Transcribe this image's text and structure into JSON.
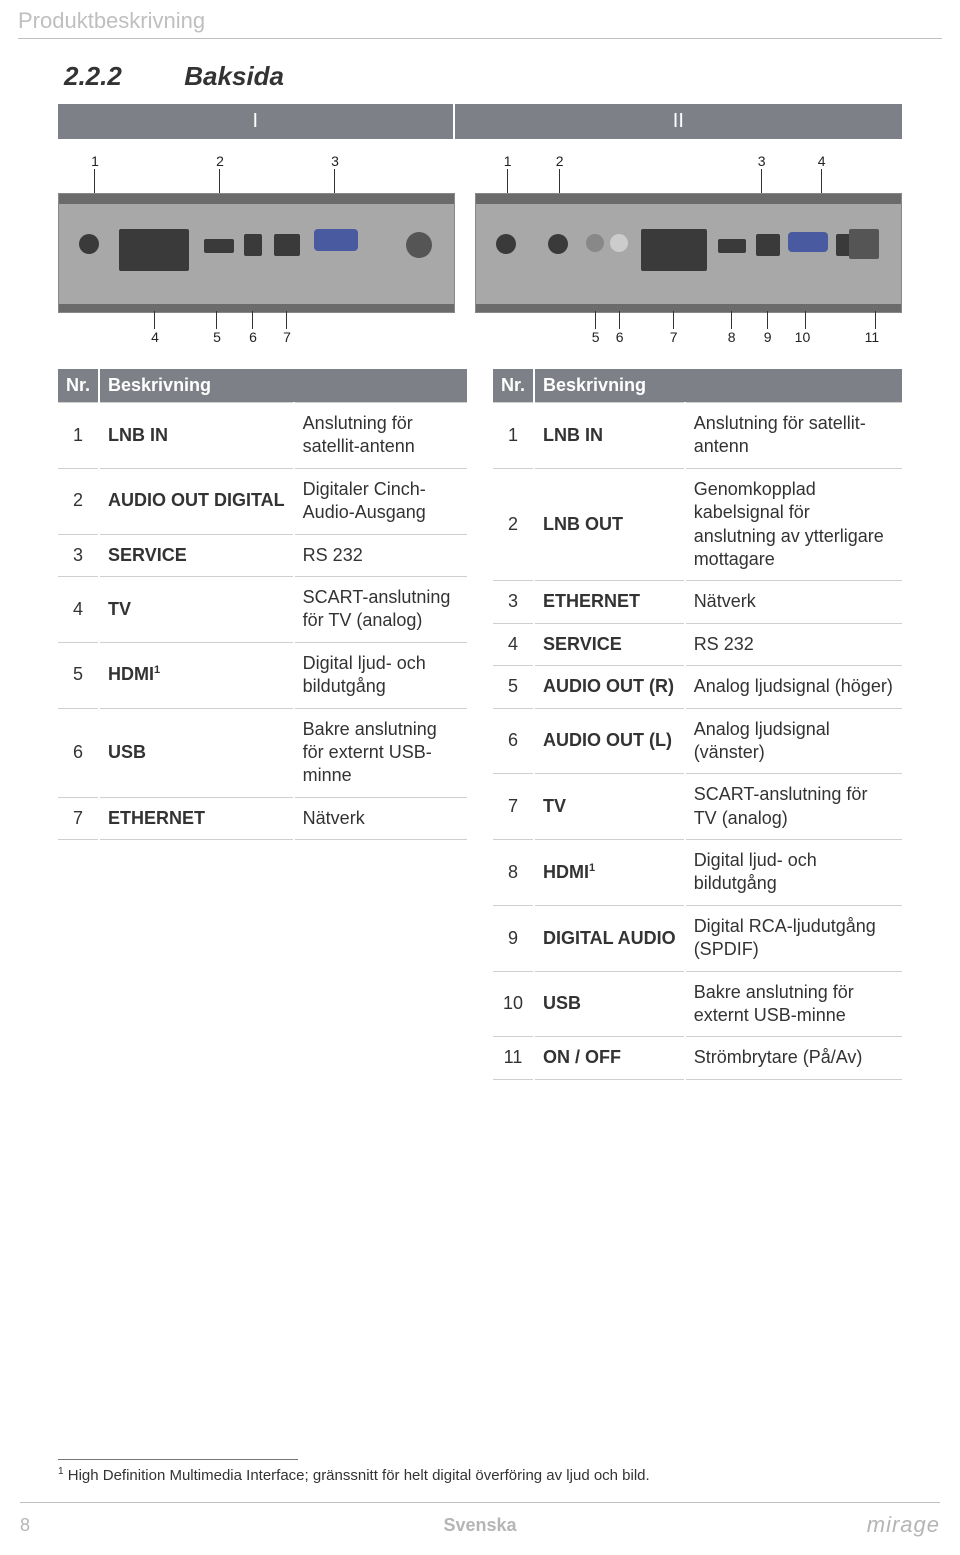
{
  "header": {
    "title": "Produktbeskrivning"
  },
  "section": {
    "number": "2.2.2",
    "label": "Baksida"
  },
  "panels": {
    "left": "I",
    "right": "II"
  },
  "deviceLeft": {
    "topNums": [
      "1",
      "2",
      "3"
    ],
    "bottomNums": [
      "4",
      "5",
      "6",
      "7"
    ]
  },
  "deviceRight": {
    "topNums": [
      "1",
      "2",
      "3",
      "4"
    ],
    "bottomNums": [
      "5",
      "6",
      "7",
      "8",
      "9",
      "10",
      "11"
    ]
  },
  "tableLeft": {
    "headers": {
      "nr": "Nr.",
      "desc": "Beskrivning"
    },
    "rows": [
      {
        "n": "1",
        "lbl": "LNB IN",
        "desc": "Anslutning för satellit-antenn"
      },
      {
        "n": "2",
        "lbl": "AUDIO OUT DIGITAL",
        "desc": "Digitaler Cinch-Audio-Ausgang"
      },
      {
        "n": "3",
        "lbl": "SERVICE",
        "desc": "RS 232"
      },
      {
        "n": "4",
        "lbl": "TV",
        "desc": "SCART-anslutning för TV (analog)"
      },
      {
        "n": "5",
        "lbl": "HDMI",
        "sup": "1",
        "desc": "Digital ljud- och bildutgång"
      },
      {
        "n": "6",
        "lbl": "USB",
        "desc": "Bakre anslutning för externt USB-minne"
      },
      {
        "n": "7",
        "lbl": "ETHERNET",
        "desc": "Nätverk"
      }
    ]
  },
  "tableRight": {
    "headers": {
      "nr": "Nr.",
      "desc": "Beskrivning"
    },
    "rows": [
      {
        "n": "1",
        "lbl": "LNB IN",
        "desc": "Anslutning för satellit-antenn"
      },
      {
        "n": "2",
        "lbl": "LNB OUT",
        "desc": "Genomkopplad kabelsignal för anslutning av ytterligare mottagare"
      },
      {
        "n": "3",
        "lbl": "ETHERNET",
        "desc": "Nätverk"
      },
      {
        "n": "4",
        "lbl": "SERVICE",
        "desc": "RS 232"
      },
      {
        "n": "5",
        "lbl": "AUDIO OUT (R)",
        "desc": "Analog ljudsignal (höger)"
      },
      {
        "n": "6",
        "lbl": "AUDIO OUT (L)",
        "desc": "Analog ljudsignal (vänster)"
      },
      {
        "n": "7",
        "lbl": "TV",
        "desc": "SCART-anslutning för TV (analog)"
      },
      {
        "n": "8",
        "lbl": "HDMI",
        "sup": "1",
        "desc": "Digital ljud- och bildutgång"
      },
      {
        "n": "9",
        "lbl": "DIGITAL AUDIO",
        "desc": "Digital RCA-ljudutgång (SPDIF)"
      },
      {
        "n": "10",
        "lbl": "USB",
        "desc": "Bakre anslutning för externt USB-minne"
      },
      {
        "n": "11",
        "lbl": "ON / OFF",
        "desc": "Strömbrytare (På/Av)"
      }
    ]
  },
  "footnote": {
    "marker": "1",
    "text": "High Definition Multimedia Interface; gränssnitt för helt digital överföring av ljud och bild."
  },
  "footer": {
    "page": "8",
    "lang": "Svenska",
    "logo": "mirage"
  },
  "colors": {
    "muted": "#bfbfbf",
    "barBg": "#7d8187",
    "deviceBg": "#a8a8a8",
    "portBg": "#3a3a3a",
    "rule": "#cfcfcf"
  }
}
